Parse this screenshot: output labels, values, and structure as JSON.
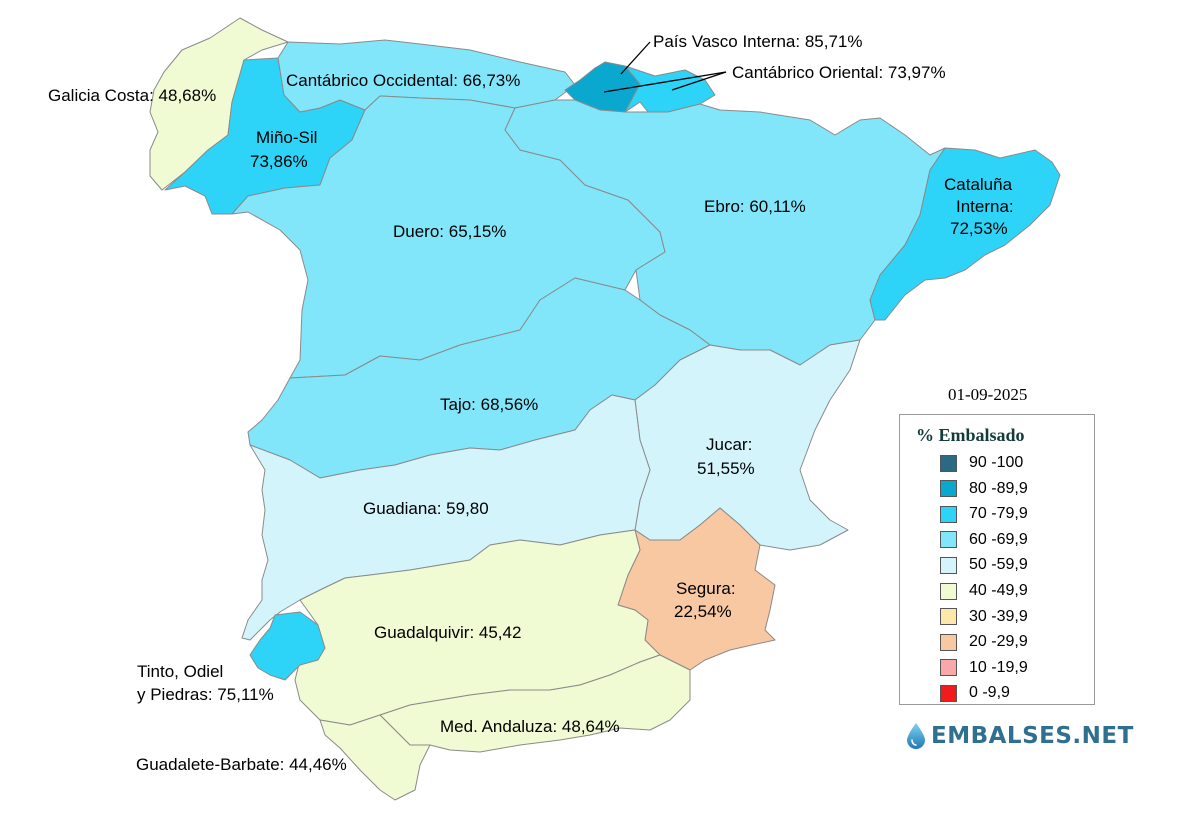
{
  "date": "01-09-2025",
  "colors": {
    "c90": "#2b6a82",
    "c80": "#0aa7cf",
    "c70": "#2ed4f7",
    "c60": "#82e6fb",
    "c50": "#d4f4fc",
    "c40": "#f1fbd3",
    "c30": "#fce9a9",
    "c20": "#f8c8a2",
    "c10": "#f8a8a8",
    "c0": "#f01c1c"
  },
  "basins": {
    "galicia": {
      "label": "Galicia Costa: 48,68%"
    },
    "minosil": {
      "label1": "Miño-Sil",
      "label2": "73,86%"
    },
    "cantocc": {
      "label": "Cantábrico Occidental: 66,73%"
    },
    "paisvasco": {
      "label": "País Vasco Interna: 85,71%"
    },
    "cantori": {
      "label": "Cantábrico Oriental: 73,97%"
    },
    "duero": {
      "label": "Duero: 65,15%"
    },
    "ebro": {
      "label": "Ebro: 60,11%"
    },
    "cataluna": {
      "label1": "Cataluña",
      "label2": "Interna:",
      "label3": "72,53%"
    },
    "tajo": {
      "label": "Tajo: 68,56%"
    },
    "jucar": {
      "label1": "Jucar:",
      "label2": "51,55%"
    },
    "guadiana": {
      "label": "Guadiana: 59,80"
    },
    "segura": {
      "label1": "Segura:",
      "label2": "22,54%"
    },
    "guadalquivir": {
      "label": "Guadalquivir: 45,42"
    },
    "tinto": {
      "label1": "Tinto, Odiel",
      "label2": "y Piedras: 75,11%"
    },
    "medandaluza": {
      "label": "Med. Andaluza: 48,64%"
    },
    "guadalete": {
      "label": "Guadalete-Barbate: 44,46%"
    }
  },
  "legend": {
    "title": "% Embalsado",
    "items": [
      {
        "label": "90 -100",
        "color": "#2b6a82"
      },
      {
        "label": "80 -89,9",
        "color": "#0aa7cf"
      },
      {
        "label": "70 -79,9",
        "color": "#2ed4f7"
      },
      {
        "label": "60 -69,9",
        "color": "#82e6fb"
      },
      {
        "label": "50 -59,9",
        "color": "#d4f4fc"
      },
      {
        "label": "40 -49,9",
        "color": "#f1fbd3"
      },
      {
        "label": "30 -39,9",
        "color": "#fce9a9"
      },
      {
        "label": "20 -29,9",
        "color": "#f8c8a2"
      },
      {
        "label": "10 -19,9",
        "color": "#f8a8a8"
      },
      {
        "label": "0 -9,9",
        "color": "#f01c1c"
      }
    ]
  },
  "brand": {
    "name": "EMBALSES.NET",
    "icon": "water-drop-icon"
  }
}
